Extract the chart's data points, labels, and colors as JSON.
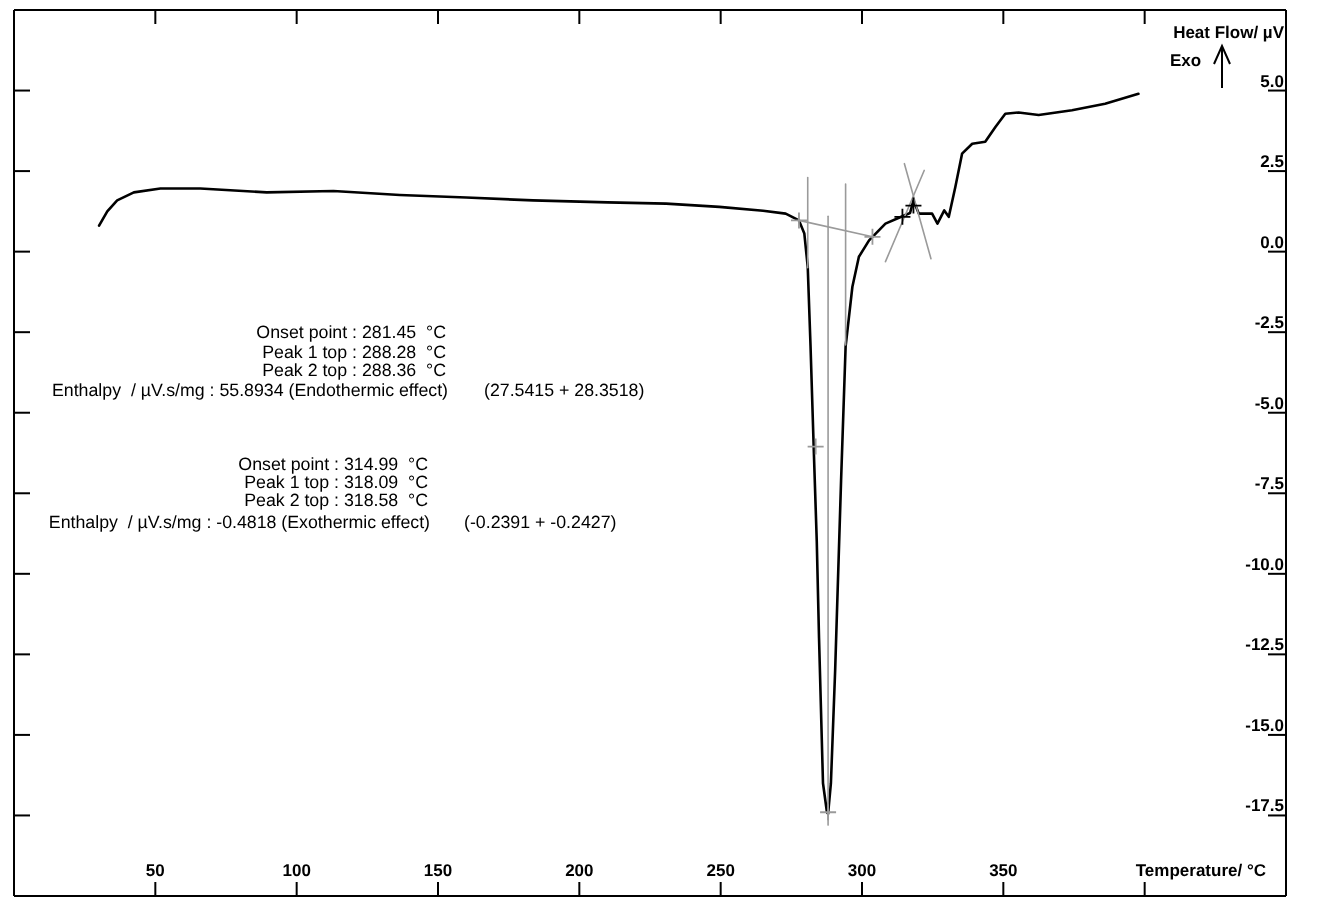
{
  "chart_data": {
    "type": "line",
    "ylabel": "Heat Flow/ µV",
    "xlabel": "Temperature/ °C",
    "annotations": [
      "Onset point : 281.45  °C",
      "Peak 1 top : 288.28  °C",
      "Peak 2 top : 288.36  °C",
      "Enthalpy  / µV.s/mg : 55.8934 (Endothermic effect)",
      "(27.5415 + 28.3518)",
      "Onset point : 314.99  °C",
      "Peak 1 top : 318.09  °C",
      "Peak 2 top : 318.58  °C",
      "Enthalpy  / µV.s/mg : -0.4818 (Exothermic effect)",
      "(-0.2391 + -0.2427)",
      "Exo"
    ],
    "xlim": [
      0,
      450
    ],
    "ylim": [
      -20,
      7.5
    ],
    "xticks": [
      50,
      100,
      150,
      200,
      250,
      300,
      350,
      {
        "value": 400,
        "label": null
      }
    ],
    "yticks": [
      {
        "value": 5,
        "label": "5.0"
      },
      2.5,
      {
        "value": 0,
        "label": "0.0"
      },
      -2.5,
      {
        "value": -5,
        "label": "-5.0"
      },
      -7.5,
      {
        "value": -10,
        "label": "-10.0"
      },
      -12.5,
      {
        "value": -15,
        "label": "-15.0"
      },
      -17.5
    ],
    "marker": "none",
    "series": [
      {
        "color": "#000000",
        "x": [
          30.1,
          33,
          36.5,
          42.4,
          51.8,
          65.9,
          89.4,
          113,
          136.5,
          160,
          183.6,
          210,
          230.7,
          249.5,
          265,
          273,
          277.7,
          279.6,
          280.8,
          281.8,
          282.9,
          284,
          284.8,
          286.2,
          287.6,
          288,
          289,
          290.5,
          292.6,
          294.2,
          296.6,
          298.9,
          302.5,
          308.3,
          314.3,
          317,
          318.2,
          320.1,
          324.8,
          326.7,
          329.1,
          330.7,
          333,
          335.4,
          339,
          343.6,
          347.2,
          350.7,
          355.4,
          362.5,
          374.3,
          386,
          397.8
        ],
        "values": [
          0.81,
          1.25,
          1.59,
          1.84,
          1.96,
          1.96,
          1.84,
          1.88,
          1.76,
          1.68,
          1.59,
          1.53,
          1.49,
          1.39,
          1.27,
          1.18,
          0.97,
          0.56,
          -0.47,
          -2.95,
          -6.05,
          -9,
          -12,
          -16.5,
          -17.4,
          -17.45,
          -16.5,
          -13,
          -7.1,
          -2.95,
          -1.09,
          -0.16,
          0.35,
          0.87,
          1.1,
          1.2,
          1.59,
          1.18,
          1.18,
          0.87,
          1.28,
          1.08,
          2,
          3.04,
          3.35,
          3.41,
          3.87,
          4.28,
          4.32,
          4.24,
          4.39,
          4.59,
          4.9
        ]
      },
      {
        "color": "#9a9a9a",
        "x": [
          277.7,
          303.7
        ],
        "values": [
          0.97,
          0.46
        ]
      },
      {
        "color": "#9a9a9a",
        "x": [
          280.8,
          280.8
        ],
        "values": [
          2.3,
          -0.5
        ]
      },
      {
        "color": "#9a9a9a",
        "x": [
          288,
          288
        ],
        "values": [
          1.1,
          -17.8
        ]
      },
      {
        "color": "#9a9a9a",
        "x": [
          294.2,
          294.2
        ],
        "values": [
          2.1,
          -2.9
        ]
      },
      {
        "color": "#9a9a9a",
        "x": [
          308.3,
          322
        ],
        "values": [
          -0.31,
          2.52
        ]
      },
      {
        "color": "#9a9a9a",
        "x": [
          315,
          324.4
        ],
        "values": [
          2.73,
          -0.22
        ]
      },
      {
        "type": "scatter",
        "marker": "cross",
        "color": "#9a9a9a",
        "x": [
          277.7,
          303.7,
          283.6,
          288
        ],
        "values": [
          0.97,
          0.46,
          -6.05,
          -17.4
        ]
      },
      {
        "type": "scatter",
        "marker": "cross",
        "color": "#000000",
        "x": [
          314.3,
          318.2
        ],
        "values": [
          1.08,
          1.43
        ]
      }
    ]
  }
}
